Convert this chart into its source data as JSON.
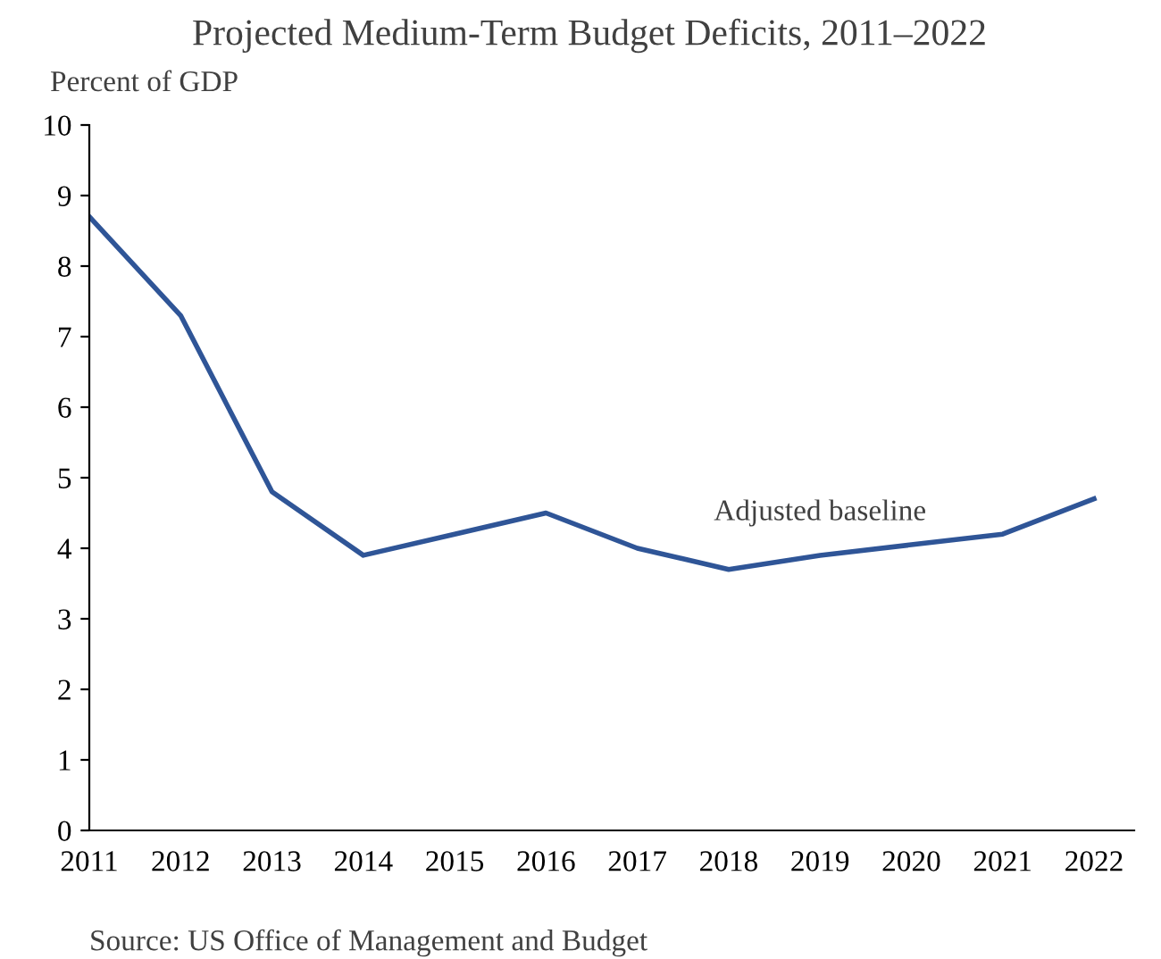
{
  "chart_data": {
    "type": "line",
    "title": "Projected Medium-Term Budget Deficits, 2011–2022",
    "ylabel": "Percent of GDP",
    "categories": [
      "2011",
      "2012",
      "2013",
      "2014",
      "2015",
      "2016",
      "2017",
      "2018",
      "2019",
      "2020",
      "2021",
      "2022"
    ],
    "series": [
      {
        "name": "Adjusted baseline",
        "color": "#2f5597",
        "values": [
          8.7,
          7.3,
          4.8,
          3.9,
          4.2,
          4.5,
          4.0,
          3.7,
          3.9,
          4.05,
          4.2,
          4.7
        ]
      }
    ],
    "ylim": [
      0,
      10
    ],
    "yticks": [
      0,
      1,
      2,
      3,
      4,
      5,
      6,
      7,
      8,
      9,
      10
    ],
    "annotations": [
      "Source: US Office of Management and Budget"
    ],
    "grid": false,
    "legend": false,
    "marker": "none",
    "line_style": "solid"
  }
}
